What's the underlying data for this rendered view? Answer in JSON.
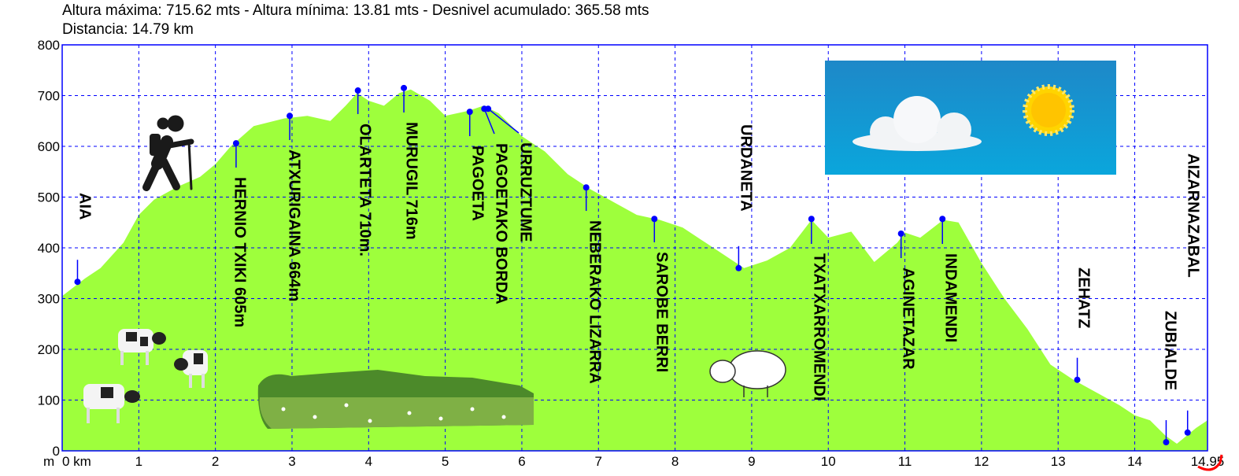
{
  "header": {
    "stats": "Altura máxima: 715.62 mts - Altura mínima: 13.81 mts - Desnivel acumulado: 365.58 mts",
    "distance": "Distancia: 14.79 km"
  },
  "chart_data": {
    "type": "area",
    "xlabel": "km",
    "ylabel": "m",
    "xlim": [
      0,
      14.95
    ],
    "ylim": [
      0,
      800
    ],
    "x_ticks": [
      "0 km",
      "1",
      "2",
      "3",
      "4",
      "5",
      "6",
      "7",
      "8",
      "9",
      "10",
      "11",
      "12",
      "13",
      "14",
      "14.95"
    ],
    "y_ticks": [
      "0",
      "100",
      "200",
      "300",
      "400",
      "500",
      "600",
      "700",
      "800"
    ],
    "grid": true,
    "fill_color": "#9eff3c",
    "grid_color": "#0000ff",
    "profile": [
      [
        0,
        305
      ],
      [
        0.3,
        340
      ],
      [
        0.5,
        360
      ],
      [
        0.8,
        410
      ],
      [
        1.0,
        465
      ],
      [
        1.2,
        495
      ],
      [
        1.5,
        520
      ],
      [
        1.8,
        540
      ],
      [
        2.0,
        565
      ],
      [
        2.2,
        600
      ],
      [
        2.5,
        640
      ],
      [
        2.9,
        655
      ],
      [
        3.2,
        660
      ],
      [
        3.5,
        650
      ],
      [
        3.7,
        680
      ],
      [
        3.85,
        705
      ],
      [
        4.0,
        690
      ],
      [
        4.2,
        680
      ],
      [
        4.4,
        705
      ],
      [
        4.55,
        712
      ],
      [
        4.8,
        690
      ],
      [
        5.0,
        660
      ],
      [
        5.3,
        670
      ],
      [
        5.5,
        680
      ],
      [
        5.7,
        665
      ],
      [
        6.0,
        620
      ],
      [
        6.3,
        590
      ],
      [
        6.6,
        545
      ],
      [
        6.9,
        515
      ],
      [
        7.2,
        490
      ],
      [
        7.5,
        465
      ],
      [
        7.8,
        455
      ],
      [
        8.1,
        440
      ],
      [
        8.4,
        410
      ],
      [
        8.7,
        380
      ],
      [
        8.9,
        360
      ],
      [
        9.2,
        375
      ],
      [
        9.5,
        400
      ],
      [
        9.78,
        455
      ],
      [
        10.0,
        420
      ],
      [
        10.3,
        432
      ],
      [
        10.6,
        372
      ],
      [
        10.9,
        410
      ],
      [
        11.0,
        430
      ],
      [
        11.2,
        420
      ],
      [
        11.5,
        455
      ],
      [
        11.7,
        450
      ],
      [
        12.0,
        370
      ],
      [
        12.3,
        300
      ],
      [
        12.6,
        240
      ],
      [
        12.9,
        170
      ],
      [
        13.2,
        140
      ],
      [
        13.5,
        115
      ],
      [
        13.8,
        90
      ],
      [
        14.0,
        70
      ],
      [
        14.2,
        60
      ],
      [
        14.4,
        30
      ],
      [
        14.55,
        14
      ],
      [
        14.8,
        45
      ],
      [
        14.95,
        60
      ]
    ],
    "waypoints": [
      {
        "name": "AIA",
        "km": 0.2,
        "m": 333
      },
      {
        "name": "HERNIO TXIKI 605m",
        "km": 2.27,
        "m": 606
      },
      {
        "name": "ATXURIGAINA 664m",
        "km": 2.97,
        "m": 660
      },
      {
        "name": "OLARTETA 710m.",
        "km": 3.86,
        "m": 710
      },
      {
        "name": "MURUGIL 716m",
        "km": 4.46,
        "m": 715
      },
      {
        "name": "PAGOETA",
        "km": 5.32,
        "m": 668
      },
      {
        "name": "PAGOETAKO BORDA",
        "km": 5.51,
        "m": 674
      },
      {
        "name": "URRUZTUME",
        "km": 5.56,
        "m": 674
      },
      {
        "name": "NEBERAKO LIZARRA",
        "km": 6.84,
        "m": 519
      },
      {
        "name": "SAROBE BERRI",
        "km": 7.73,
        "m": 457
      },
      {
        "name": "URDANETA",
        "km": 8.83,
        "m": 360
      },
      {
        "name": "TXATXARROMENDI",
        "km": 9.78,
        "m": 457
      },
      {
        "name": "AGINETAZAR",
        "km": 10.95,
        "m": 428
      },
      {
        "name": "INDAMENDI",
        "km": 11.49,
        "m": 457
      },
      {
        "name": "ZEHATZ",
        "km": 13.25,
        "m": 140
      },
      {
        "name": "ZUBIALDE",
        "km": 14.41,
        "m": 17
      },
      {
        "name": "AIZARNAZABAL",
        "km": 14.69,
        "m": 36
      }
    ],
    "marker_color": "#0000ff",
    "decorations": [
      "hiker-icon",
      "cow-image",
      "sheep-image",
      "meadow-image",
      "sky-sun-cloud-image"
    ]
  }
}
